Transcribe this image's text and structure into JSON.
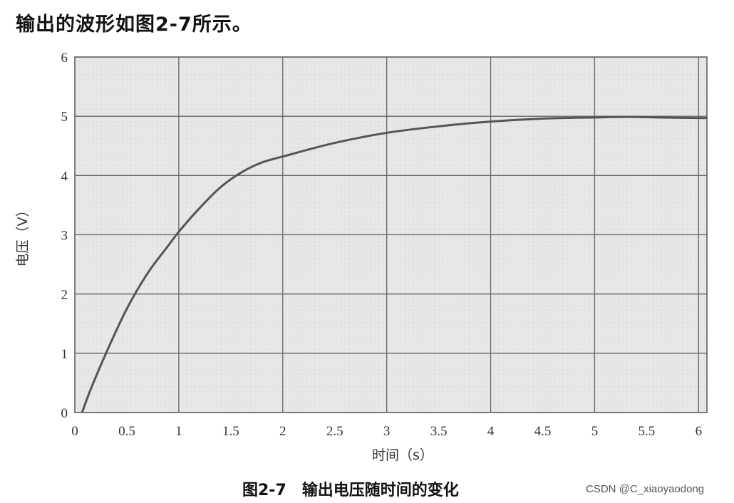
{
  "intro_text": "输出的波形如图2-7所示。",
  "caption": {
    "figure_number": "图2-7",
    "title": "输出电压随时间的变化"
  },
  "watermark": "CSDN @C_xiaoyaodong",
  "chart_data": {
    "type": "line",
    "xlabel": "时间（s）",
    "ylabel": "电压（V）",
    "xlim": [
      0,
      6.08
    ],
    "ylim": [
      0,
      6
    ],
    "x_ticks": [
      0,
      0.5,
      1,
      1.5,
      2,
      2.5,
      3,
      3.5,
      4,
      4.5,
      5,
      5.5,
      6
    ],
    "x_tick_labels": [
      "0",
      "0.5",
      "1",
      "1.5",
      "2",
      "2.5",
      "3",
      "3.5",
      "4",
      "4.5",
      "5",
      "5.5",
      "6"
    ],
    "y_ticks": [
      0,
      1,
      2,
      3,
      4,
      5,
      6
    ],
    "y_tick_labels": [
      "0",
      "1",
      "2",
      "3",
      "4",
      "5",
      "6"
    ],
    "grid": true,
    "series": [
      {
        "color": "#555555",
        "x": [
          0.07,
          0.15,
          0.3,
          0.5,
          0.7,
          0.9,
          1.0,
          1.2,
          1.4,
          1.6,
          1.8,
          2.0,
          2.5,
          3.0,
          3.5,
          4.0,
          4.5,
          5.0,
          5.3,
          5.6,
          6.0,
          6.08
        ],
        "y": [
          0.0,
          0.38,
          1.0,
          1.75,
          2.35,
          2.82,
          3.05,
          3.45,
          3.8,
          4.05,
          4.22,
          4.32,
          4.55,
          4.72,
          4.83,
          4.91,
          4.96,
          4.98,
          4.99,
          4.98,
          4.97,
          4.97
        ]
      }
    ]
  }
}
